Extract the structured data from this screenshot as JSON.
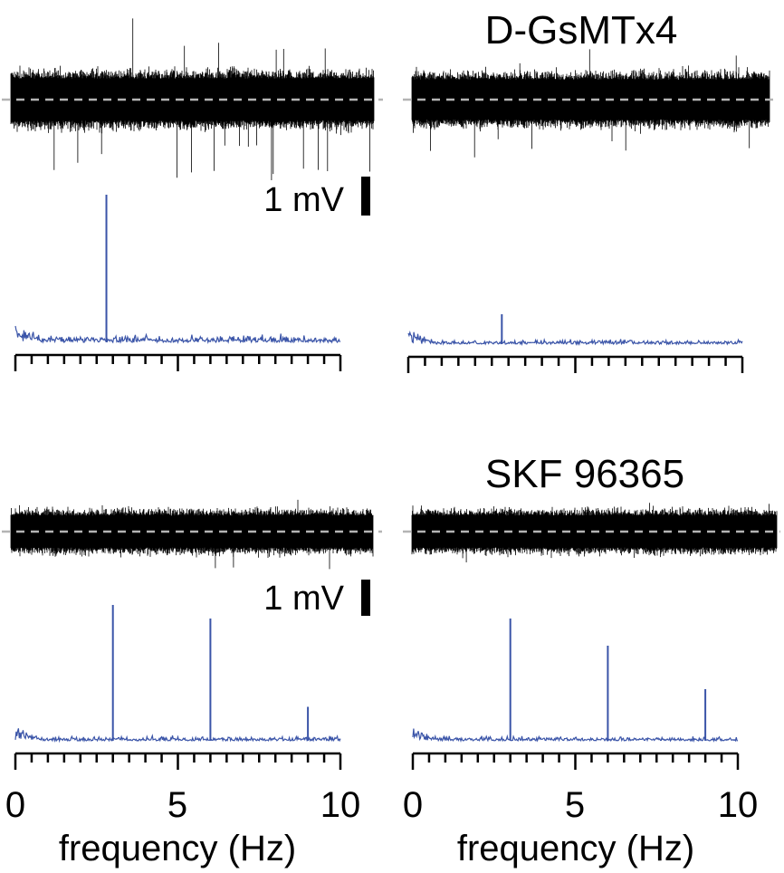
{
  "figure": {
    "colors": {
      "trace": "#000000",
      "spectrum": "#3a54a8",
      "baseline": "#b4b4b4",
      "axis": "#000000"
    }
  },
  "chart_data": [
    {
      "type": "line",
      "panel": "top-left",
      "title": "",
      "kind": "voltage trace and power spectrum",
      "scale_bar_label": "1 mV",
      "spectrum": {
        "xlim": [
          0,
          10
        ],
        "minor_tick_step": 0.5,
        "peaks": [
          {
            "x": 2.8,
            "relative_height": 1.0
          }
        ],
        "noise_relative": 0.08
      },
      "xtick_labels": [],
      "xlabel": ""
    },
    {
      "type": "line",
      "panel": "top-right",
      "title": "D-GsMTx4",
      "kind": "voltage trace and power spectrum",
      "scale_bar_label": "",
      "spectrum": {
        "xlim": [
          0,
          10
        ],
        "minor_tick_step": 0.5,
        "peaks": [
          {
            "x": 2.8,
            "relative_height": 0.2
          }
        ],
        "noise_relative": 0.05
      },
      "xtick_labels": [],
      "xlabel": ""
    },
    {
      "type": "line",
      "panel": "bottom-left",
      "title": "",
      "kind": "voltage trace and power spectrum",
      "scale_bar_label": "1 mV",
      "spectrum": {
        "xlim": [
          0,
          10
        ],
        "minor_tick_step": 0.5,
        "peaks": [
          {
            "x": 3.0,
            "relative_height": 1.0
          },
          {
            "x": 6.0,
            "relative_height": 0.9
          },
          {
            "x": 9.0,
            "relative_height": 0.25
          }
        ],
        "noise_relative": 0.05
      },
      "xticks": [
        0,
        5,
        10
      ],
      "xtick_labels": [
        "0",
        "5",
        "10"
      ],
      "xlabel": "frequency (Hz)"
    },
    {
      "type": "line",
      "panel": "bottom-right",
      "title": "SKF 96365",
      "kind": "voltage trace and power spectrum",
      "scale_bar_label": "",
      "spectrum": {
        "xlim": [
          0,
          10
        ],
        "minor_tick_step": 0.5,
        "peaks": [
          {
            "x": 3.0,
            "relative_height": 0.9
          },
          {
            "x": 6.0,
            "relative_height": 0.7
          },
          {
            "x": 9.0,
            "relative_height": 0.38
          }
        ],
        "noise_relative": 0.05
      },
      "xticks": [
        0,
        5,
        10
      ],
      "xtick_labels": [
        "0",
        "5",
        "10"
      ],
      "xlabel": "frequency (Hz)"
    }
  ]
}
